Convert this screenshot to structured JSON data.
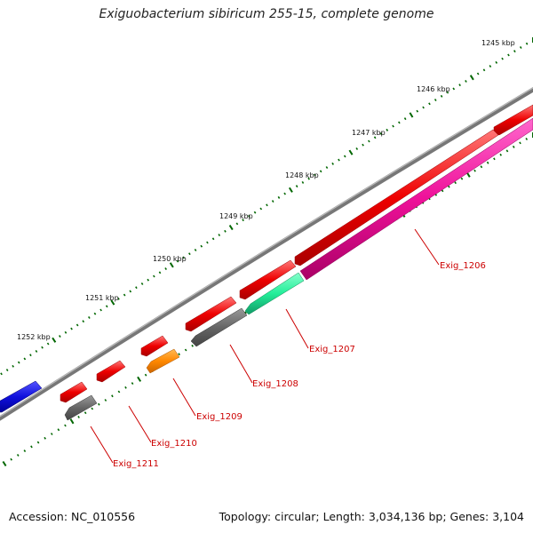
{
  "title": "Exiguobacterium sibiricum 255-15, complete genome",
  "accession": "Accession: NC_010556",
  "topology": "Topology: circular; Length: 3,034,136 bp; Genes: 3,104",
  "scale_labels": [
    "1245 kbp",
    "1246 kbp",
    "1247 kbp",
    "1248 kbp",
    "1249 kbp",
    "1250 kbp",
    "1251 kbp",
    "1252 kbp"
  ],
  "gene_labels": [
    "Exig_1206",
    "Exig_1207",
    "Exig_1208",
    "Exig_1209",
    "Exig_1210",
    "Exig_1211"
  ],
  "colors": {
    "forward": "#ee0000",
    "backbone": "#888888",
    "blue": "#1010dd",
    "gray": "#666666",
    "green": "#22ee99",
    "orange": "#ff8800",
    "magenta": "#ee1199",
    "tick": "#006600",
    "label": "#cc0000"
  }
}
